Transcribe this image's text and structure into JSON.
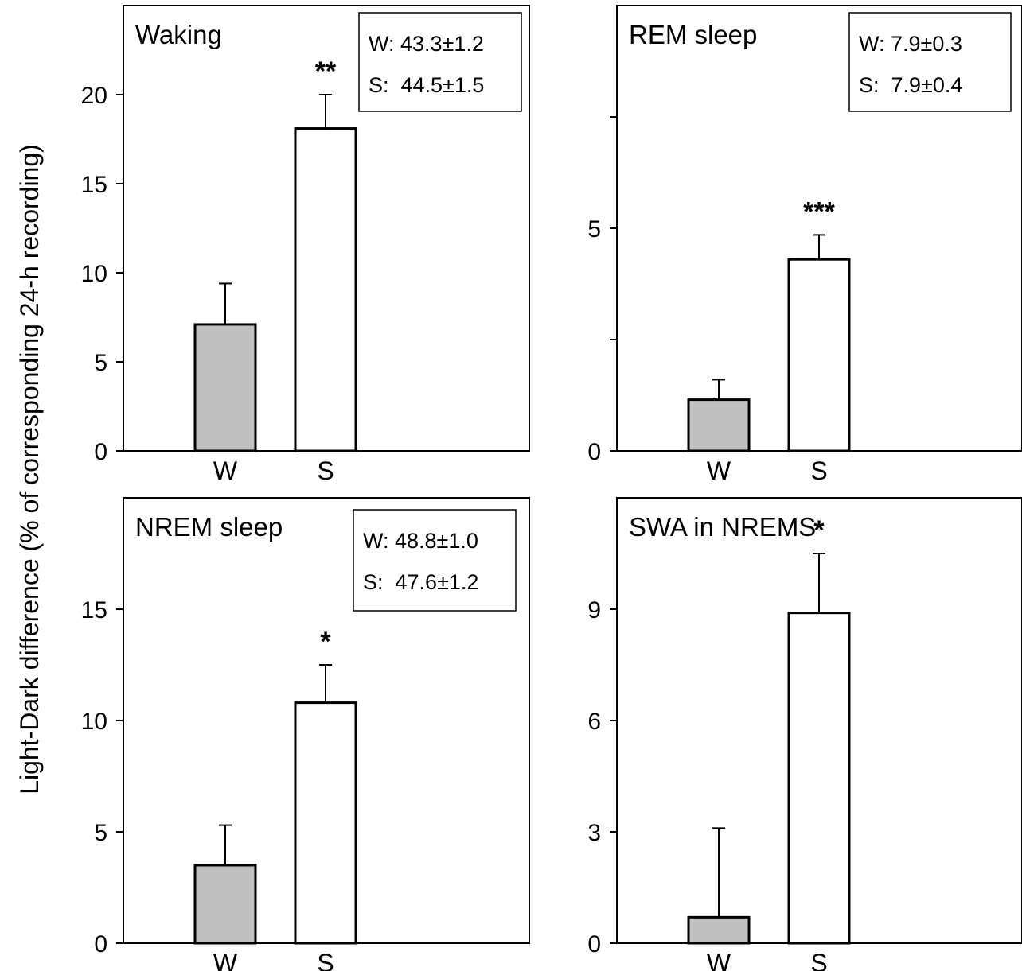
{
  "figure": {
    "ylabel": "Light-Dark difference (% of corresponding 24-h recording)"
  },
  "colors": {
    "W": "#c0c0c0",
    "S": "#ffffff",
    "stroke": "#000000"
  },
  "chart_data": [
    {
      "type": "bar",
      "title": "Waking",
      "categories": [
        "W",
        "S"
      ],
      "values": [
        7.1,
        18.1
      ],
      "errors": [
        2.3,
        1.9
      ],
      "ylim": [
        0,
        25
      ],
      "yticks": [
        0,
        5,
        10,
        15,
        20
      ],
      "minor_ticks": [],
      "significance": "**",
      "stats_box": [
        "W: 43.3±1.2",
        "S:  44.5±1.5"
      ],
      "legend_position": "top-right",
      "grid": false
    },
    {
      "type": "bar",
      "title": "REM sleep",
      "categories": [
        "W",
        "S"
      ],
      "values": [
        1.15,
        4.3
      ],
      "errors": [
        0.45,
        0.55
      ],
      "ylim": [
        0,
        10
      ],
      "yticks": [
        0,
        5
      ],
      "minor_ticks": [
        2.5,
        7.5
      ],
      "significance": "***",
      "stats_box": [
        "W: 7.9±0.3",
        "S:  7.9±0.4"
      ],
      "legend_position": "top-right",
      "grid": false
    },
    {
      "type": "bar",
      "title": "NREM sleep",
      "categories": [
        "W",
        "S"
      ],
      "values": [
        3.5,
        10.8
      ],
      "errors": [
        1.8,
        1.7
      ],
      "ylim": [
        0,
        20
      ],
      "yticks": [
        0,
        5,
        10,
        15
      ],
      "minor_ticks": [],
      "significance": "*",
      "stats_box": [
        "W: 48.8±1.0",
        "S:  47.6±1.2"
      ],
      "legend_position": "top-right",
      "grid": false
    },
    {
      "type": "bar",
      "title": "SWA in NREMS",
      "categories": [
        "W",
        "S"
      ],
      "values": [
        0.7,
        8.9
      ],
      "errors": [
        2.4,
        1.6
      ],
      "ylim": [
        0,
        12
      ],
      "yticks": [
        0,
        3,
        6,
        9
      ],
      "minor_ticks": [],
      "significance": "*",
      "stats_box": [],
      "legend_position": "",
      "grid": false
    }
  ]
}
